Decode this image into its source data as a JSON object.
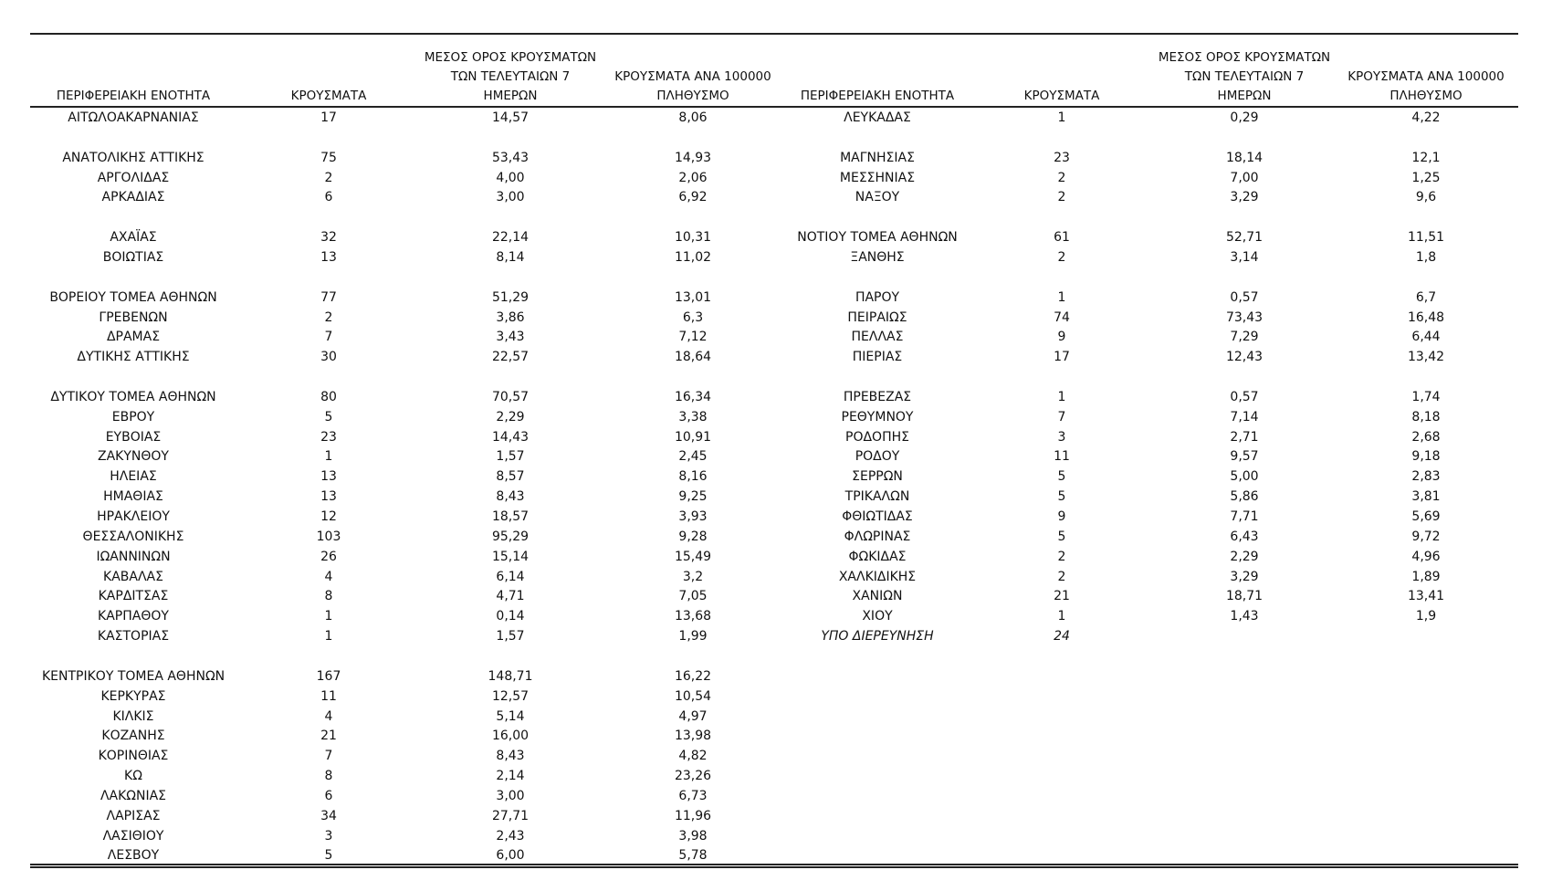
{
  "tables": [
    {
      "headers": [
        [
          "ΠΕΡΙΦΕΡΕΙΑΚΗ ΕΝΟΤΗΤΑ"
        ],
        [
          "ΚΡΟΥΣΜΑΤΑ"
        ],
        [
          "ΜΕΣΟΣ ΟΡΟΣ ΚΡΟΥΣΜΑΤΩΝ",
          "ΤΩΝ ΤΕΛΕΥΤΑΙΩΝ 7",
          "ΗΜΕΡΩΝ"
        ],
        [
          "ΚΡΟΥΣΜΑΤΑ ΑΝΑ 100000",
          "ΠΛΗΘΥΣΜΟ"
        ]
      ],
      "groups": [
        [
          [
            "ΑΙΤΩΛΟΑΚΑΡΝΑΝΙΑΣ",
            "17",
            "14,57",
            "8,06"
          ]
        ],
        [
          [
            "ΑΝΑΤΟΛΙΚΗΣ ΑΤΤΙΚΗΣ",
            "75",
            "53,43",
            "14,93"
          ],
          [
            "ΑΡΓΟΛΙΔΑΣ",
            "2",
            "4,00",
            "2,06"
          ],
          [
            "ΑΡΚΑΔΙΑΣ",
            "6",
            "3,00",
            "6,92"
          ]
        ],
        [
          [
            "ΑΧΑΪΑΣ",
            "32",
            "22,14",
            "10,31"
          ],
          [
            "ΒΟΙΩΤΙΑΣ",
            "13",
            "8,14",
            "11,02"
          ]
        ],
        [
          [
            "ΒΟΡΕΙΟΥ ΤΟΜΕΑ ΑΘΗΝΩΝ",
            "77",
            "51,29",
            "13,01"
          ],
          [
            "ΓΡΕΒΕΝΩΝ",
            "2",
            "3,86",
            "6,3"
          ],
          [
            "ΔΡΑΜΑΣ",
            "7",
            "3,43",
            "7,12"
          ],
          [
            "ΔΥΤΙΚΗΣ ΑΤΤΙΚΗΣ",
            "30",
            "22,57",
            "18,64"
          ]
        ],
        [
          [
            "ΔΥΤΙΚΟΥ ΤΟΜΕΑ ΑΘΗΝΩΝ",
            "80",
            "70,57",
            "16,34"
          ],
          [
            "ΕΒΡΟΥ",
            "5",
            "2,29",
            "3,38"
          ],
          [
            "ΕΥΒΟΙΑΣ",
            "23",
            "14,43",
            "10,91"
          ],
          [
            "ΖΑΚΥΝΘΟΥ",
            "1",
            "1,57",
            "2,45"
          ],
          [
            "ΗΛΕΙΑΣ",
            "13",
            "8,57",
            "8,16"
          ],
          [
            "ΗΜΑΘΙΑΣ",
            "13",
            "8,43",
            "9,25"
          ],
          [
            "ΗΡΑΚΛΕΙΟΥ",
            "12",
            "18,57",
            "3,93"
          ],
          [
            "ΘΕΣΣΑΛΟΝΙΚΗΣ",
            "103",
            "95,29",
            "9,28"
          ],
          [
            "ΙΩΑΝΝΙΝΩΝ",
            "26",
            "15,14",
            "15,49"
          ],
          [
            "ΚΑΒΑΛΑΣ",
            "4",
            "6,14",
            "3,2"
          ],
          [
            "ΚΑΡΔΙΤΣΑΣ",
            "8",
            "4,71",
            "7,05"
          ],
          [
            "ΚΑΡΠΑΘΟΥ",
            "1",
            "0,14",
            "13,68"
          ],
          [
            "ΚΑΣΤΟΡΙΑΣ",
            "1",
            "1,57",
            "1,99"
          ]
        ],
        [
          [
            "ΚΕΝΤΡΙΚΟΥ ΤΟΜΕΑ ΑΘΗΝΩΝ",
            "167",
            "148,71",
            "16,22"
          ],
          [
            "ΚΕΡΚΥΡΑΣ",
            "11",
            "12,57",
            "10,54"
          ],
          [
            "ΚΙΛΚΙΣ",
            "4",
            "5,14",
            "4,97"
          ],
          [
            "ΚΟΖΑΝΗΣ",
            "21",
            "16,00",
            "13,98"
          ],
          [
            "ΚΟΡΙΝΘΙΑΣ",
            "7",
            "8,43",
            "4,82"
          ],
          [
            "ΚΩ",
            "8",
            "2,14",
            "23,26"
          ],
          [
            "ΛΑΚΩΝΙΑΣ",
            "6",
            "3,00",
            "6,73"
          ],
          [
            "ΛΑΡΙΣΑΣ",
            "34",
            "27,71",
            "11,96"
          ],
          [
            "ΛΑΣΙΘΙΟΥ",
            "3",
            "2,43",
            "3,98"
          ],
          [
            "ΛΕΣΒΟΥ",
            "5",
            "6,00",
            "5,78"
          ]
        ]
      ]
    },
    {
      "headers": [
        [
          "ΠΕΡΙΦΕΡΕΙΑΚΗ ΕΝΟΤΗΤΑ"
        ],
        [
          "ΚΡΟΥΣΜΑΤΑ"
        ],
        [
          "ΜΕΣΟΣ ΟΡΟΣ ΚΡΟΥΣΜΑΤΩΝ",
          "ΤΩΝ ΤΕΛΕΥΤΑΙΩΝ 7",
          "ΗΜΕΡΩΝ"
        ],
        [
          "ΚΡΟΥΣΜΑΤΑ ΑΝΑ 100000",
          "ΠΛΗΘΥΣΜΟ"
        ]
      ],
      "groups": [
        [
          [
            "ΛΕΥΚΑΔΑΣ",
            "1",
            "0,29",
            "4,22"
          ]
        ],
        [
          [
            "ΜΑΓΝΗΣΙΑΣ",
            "23",
            "18,14",
            "12,1"
          ],
          [
            "ΜΕΣΣΗΝΙΑΣ",
            "2",
            "7,00",
            "1,25"
          ],
          [
            "ΝΑΞΟΥ",
            "2",
            "3,29",
            "9,6"
          ]
        ],
        [
          [
            "ΝΟΤΙΟΥ ΤΟΜΕΑ ΑΘΗΝΩΝ",
            "61",
            "52,71",
            "11,51"
          ],
          [
            "ΞΑΝΘΗΣ",
            "2",
            "3,14",
            "1,8"
          ]
        ],
        [
          [
            "ΠΑΡΟΥ",
            "1",
            "0,57",
            "6,7"
          ],
          [
            "ΠΕΙΡΑΙΩΣ",
            "74",
            "73,43",
            "16,48"
          ],
          [
            "ΠΕΛΛΑΣ",
            "9",
            "7,29",
            "6,44"
          ],
          [
            "ΠΙΕΡΙΑΣ",
            "17",
            "12,43",
            "13,42"
          ]
        ],
        [
          [
            "ΠΡΕΒΕΖΑΣ",
            "1",
            "0,57",
            "1,74"
          ],
          [
            "ΡΕΘΥΜΝΟΥ",
            "7",
            "7,14",
            "8,18"
          ],
          [
            "ΡΟΔΟΠΗΣ",
            "3",
            "2,71",
            "2,68"
          ],
          [
            "ΡΟΔΟΥ",
            "11",
            "9,57",
            "9,18"
          ],
          [
            "ΣΕΡΡΩΝ",
            "5",
            "5,00",
            "2,83"
          ],
          [
            "ΤΡΙΚΑΛΩΝ",
            "5",
            "5,86",
            "3,81"
          ],
          [
            "ΦΘΙΩΤΙΔΑΣ",
            "9",
            "7,71",
            "5,69"
          ],
          [
            "ΦΛΩΡΙΝΑΣ",
            "5",
            "6,43",
            "9,72"
          ],
          [
            "ΦΩΚΙΔΑΣ",
            "2",
            "2,29",
            "4,96"
          ],
          [
            "ΧΑΛΚΙΔΙΚΗΣ",
            "2",
            "3,29",
            "1,89"
          ],
          [
            "ΧΑΝΙΩΝ",
            "21",
            "18,71",
            "13,41"
          ],
          [
            "ΧΙΟΥ",
            "1",
            "1,43",
            "1,9"
          ]
        ]
      ],
      "note": {
        "label": "ΥΠΟ ΔΙΕΡΕΥΝΗΣΗ",
        "cases": "24"
      }
    }
  ]
}
